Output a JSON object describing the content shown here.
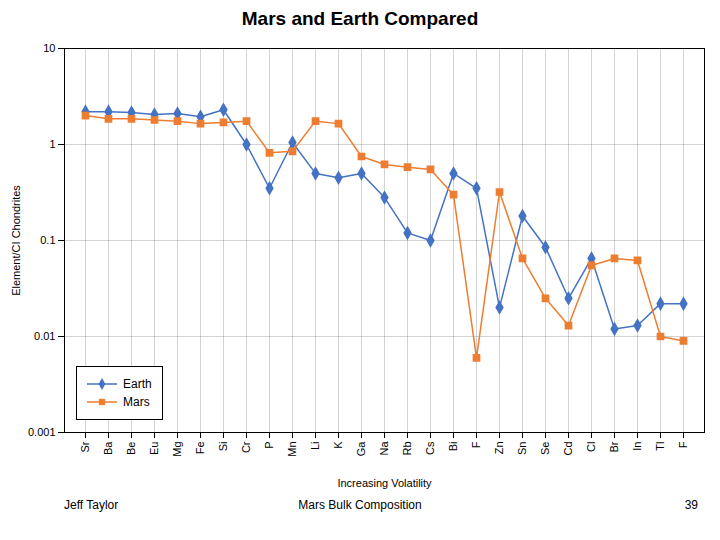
{
  "chart_data": {
    "type": "line",
    "title": "Mars and Earth Compared",
    "x_label": "Increasing Volatility",
    "y_label": "Element/CI Chondrites",
    "categories": [
      "Sr",
      "Ba",
      "Be",
      "Eu",
      "Mg",
      "Fe",
      "Si",
      "Cr",
      "P",
      "Mn",
      "Li",
      "K",
      "Ga",
      "Na",
      "Rb",
      "Cs",
      "Bi",
      "F",
      "Zn",
      "Sn",
      "Se",
      "Cd",
      "Cl",
      "Br",
      "In",
      "Tl",
      "F"
    ],
    "series": [
      {
        "name": "Earth",
        "color": "#4472C4",
        "marker": "diamond",
        "values": [
          2.2,
          2.2,
          2.15,
          2.05,
          2.1,
          1.95,
          2.3,
          1.0,
          0.35,
          1.05,
          0.5,
          0.45,
          0.5,
          0.28,
          0.12,
          0.1,
          0.5,
          0.35,
          0.02,
          0.18,
          0.085,
          0.025,
          0.065,
          0.012,
          0.013,
          0.022,
          0.022
        ]
      },
      {
        "name": "Mars",
        "color": "#ED7D31",
        "marker": "square",
        "values": [
          2.0,
          1.85,
          1.85,
          1.8,
          1.75,
          1.65,
          1.7,
          1.75,
          0.82,
          0.85,
          1.75,
          1.65,
          0.75,
          0.62,
          0.58,
          0.55,
          0.3,
          0.006,
          0.32,
          0.065,
          0.025,
          0.013,
          0.055,
          0.065,
          0.062,
          0.01,
          0.009
        ]
      }
    ],
    "log": "y",
    "ylim": [
      0.001,
      10
    ],
    "yticks": [
      0.001,
      0.01,
      0.1,
      1,
      10
    ],
    "grid": true,
    "legend": "lower left",
    "annotations": [
      "Jeff Taylor",
      "Mars Bulk Composition",
      "39"
    ]
  }
}
